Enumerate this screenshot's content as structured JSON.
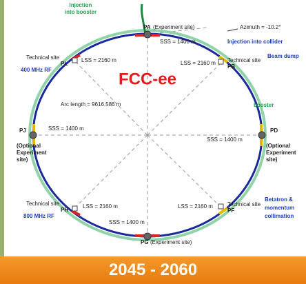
{
  "title": "FCC-ee",
  "injection_booster": [
    "Injection",
    "into booster"
  ],
  "azimuth": "Azimuth = -10.2°",
  "injection_collider": "Injection into collider",
  "beam_dump": "Beam dump",
  "booster": "booster",
  "arc_length": "Arc length = 9616.586 m",
  "rf_400": "400 MHz RF",
  "rf_800": "800 MHz RF",
  "collimation": [
    "Betatron &",
    "momentum",
    "collimation"
  ],
  "experiment_site": "(Experiment site)",
  "optional_site": [
    "(Optional",
    "Experiment",
    "site)"
  ],
  "technical_site": "Technical site",
  "sss": "SSS = 1400 m",
  "lss": "LSS = 2160 m",
  "points": [
    "PA",
    "PB",
    "PD",
    "PF",
    "PG",
    "PH",
    "PJ",
    "PL"
  ],
  "period": "2045 - 2060"
}
